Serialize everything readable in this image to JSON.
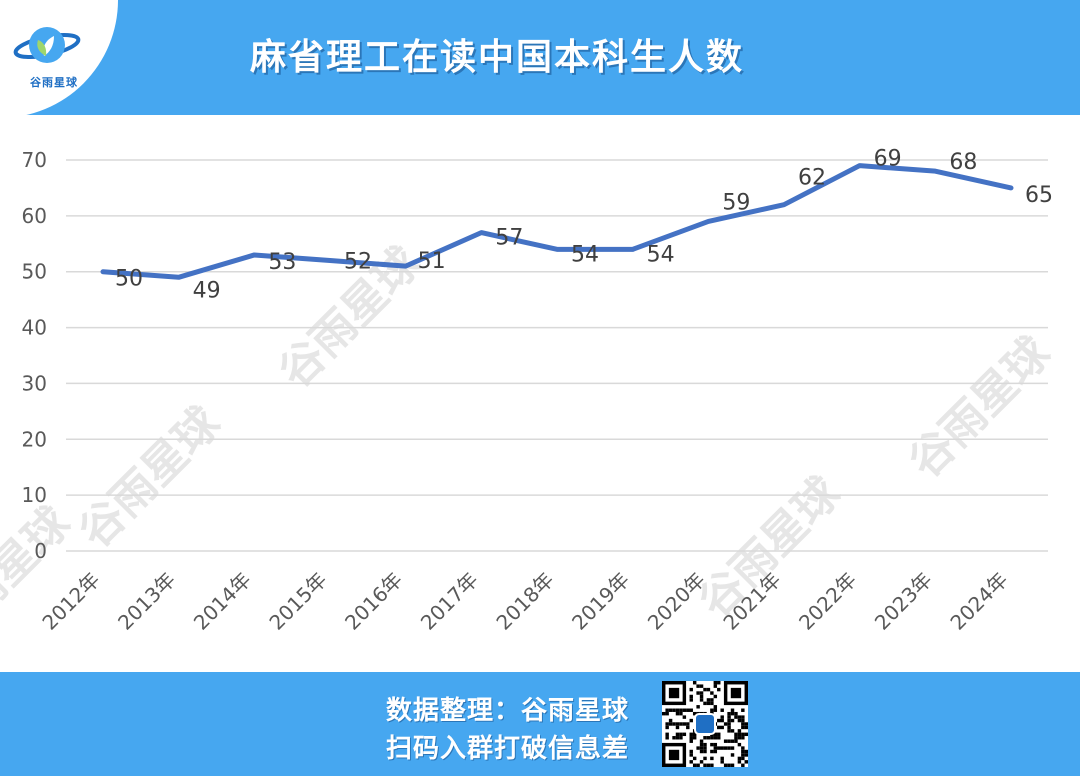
{
  "header": {
    "title": "麻省理工在读中国本科生人数",
    "logo_text": "谷雨星球"
  },
  "watermark_text": "谷雨星球",
  "footer": {
    "line1": "数据整理：谷雨星球",
    "line2": "扫码入群打破信息差"
  },
  "colors": {
    "header_bg": "#46a7f0",
    "line": "#4472c4",
    "grid": "#d9d9d9"
  },
  "chart_data": {
    "type": "line",
    "categories": [
      "2012年",
      "2013年",
      "2014年",
      "2015年",
      "2016年",
      "2017年",
      "2018年",
      "2019年",
      "2020年",
      "2021年",
      "2022年",
      "2023年",
      "2024年"
    ],
    "series": [
      {
        "values": [
          50,
          49,
          53,
          52,
          51,
          57,
          54,
          54,
          59,
          62,
          69,
          68,
          65
        ]
      }
    ],
    "yticks": [
      0,
      10,
      20,
      30,
      40,
      50,
      60,
      70
    ],
    "ylim": [
      0,
      70
    ],
    "grid": true,
    "legend": false,
    "data_labels": true
  }
}
